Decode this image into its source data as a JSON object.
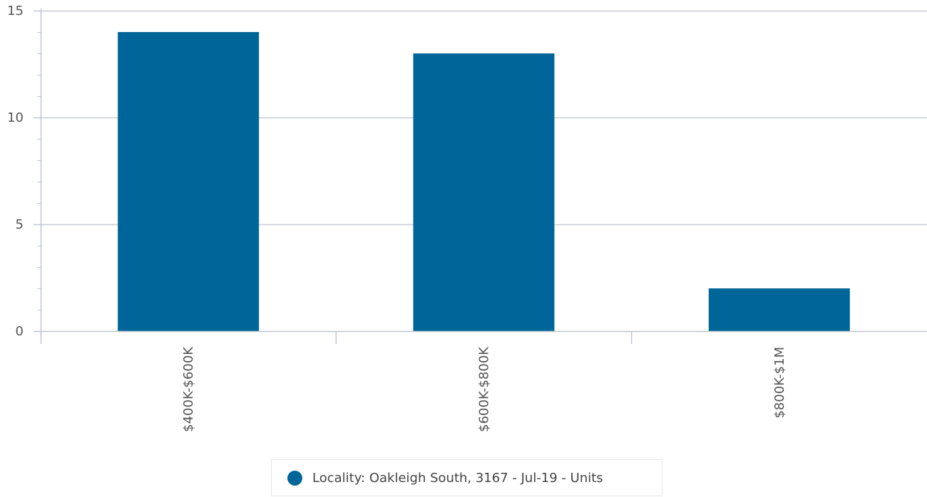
{
  "chart_data": {
    "type": "bar",
    "categories": [
      "$400K-$600K",
      "$600K-$800K",
      "$800K-$1M"
    ],
    "series": [
      {
        "name": "Locality: Oakleigh South, 3167 - Jul-19 - Units",
        "values": [
          14,
          13,
          2
        ],
        "color": "#006699"
      }
    ],
    "ylim": [
      0,
      15
    ],
    "yticks": [
      0,
      5,
      10,
      15
    ],
    "ytick_labels": [
      "0",
      "5",
      "10",
      "15"
    ],
    "grid": true,
    "legend_position": "bottom-center",
    "xlabel": "",
    "ylabel": "",
    "title": ""
  },
  "legend": {
    "label": "Locality: Oakleigh South, 3167 - Jul-19 - Units",
    "color": "#006699"
  }
}
